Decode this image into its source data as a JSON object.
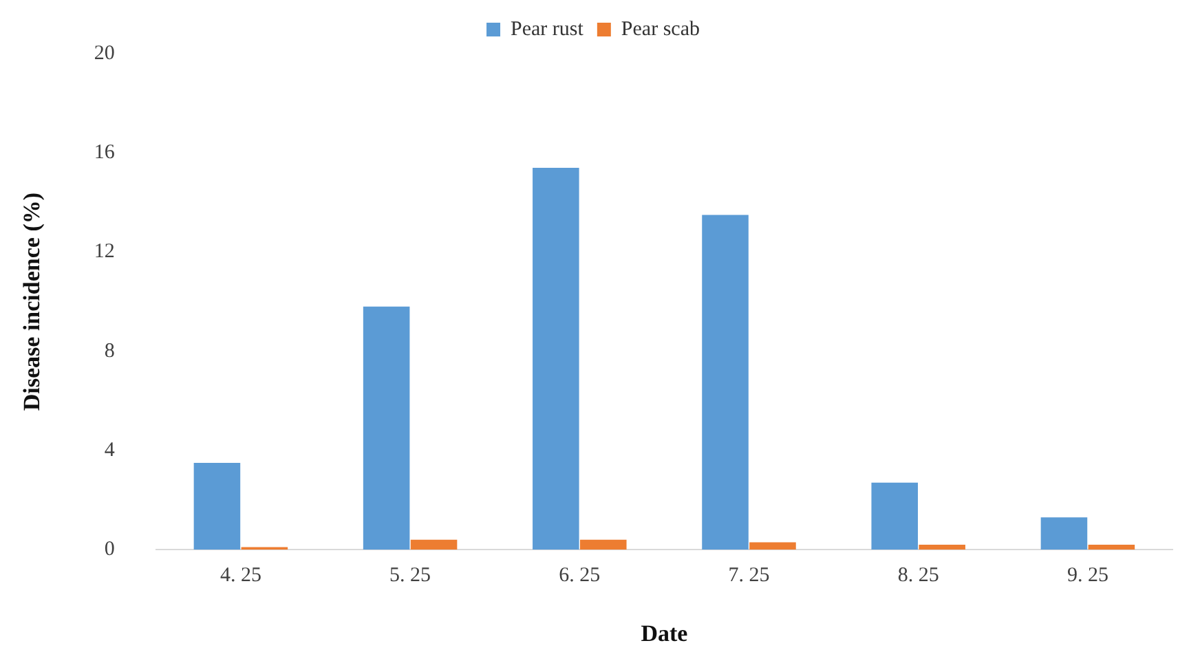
{
  "chart_data": {
    "type": "bar",
    "xlabel": "Date",
    "ylabel": "Disease incidence (%)",
    "categories": [
      "4. 25",
      "5. 25",
      "6. 25",
      "7. 25",
      "8. 25",
      "9. 25"
    ],
    "series": [
      {
        "name": "Pear rust",
        "color": "#5b9bd5",
        "values": [
          3.5,
          9.8,
          15.4,
          13.5,
          2.7,
          1.3
        ]
      },
      {
        "name": "Pear scab",
        "color": "#ed7d31",
        "values": [
          0.1,
          0.4,
          0.4,
          0.3,
          0.2,
          0.2
        ]
      }
    ],
    "ylim": [
      0,
      20
    ],
    "yticks": [
      0,
      4,
      8,
      12,
      16,
      20
    ],
    "grid": false,
    "legend": "top"
  }
}
